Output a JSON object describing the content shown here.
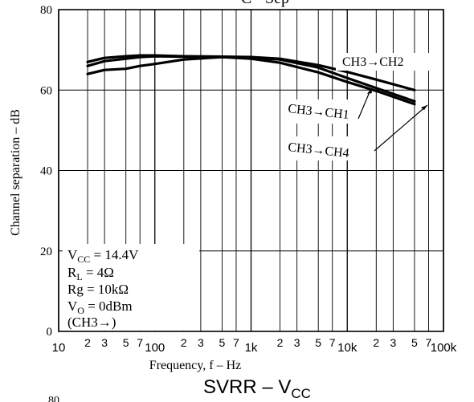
{
  "chart_data": {
    "type": "line",
    "title_fragment": "C - Sep",
    "xlabel": "Frequency, f  –  Hz",
    "ylabel": "Channel separation  –  dB",
    "xscale": "log",
    "xlim": [
      10,
      100000
    ],
    "ylim": [
      0,
      80
    ],
    "grid": true,
    "x_major_ticks": [
      {
        "value": 10,
        "label": "10"
      },
      {
        "value": 100,
        "label": "100"
      },
      {
        "value": 1000,
        "label": "1k"
      },
      {
        "value": 10000,
        "label": "10k"
      },
      {
        "value": 100000,
        "label": "100k"
      }
    ],
    "x_minor_ticks": [
      {
        "value": 20,
        "label": "2"
      },
      {
        "value": 30,
        "label": "3"
      },
      {
        "value": 50,
        "label": "5"
      },
      {
        "value": 70,
        "label": "7"
      },
      {
        "value": 200,
        "label": "2"
      },
      {
        "value": 300,
        "label": "3"
      },
      {
        "value": 500,
        "label": "5"
      },
      {
        "value": 700,
        "label": "7"
      },
      {
        "value": 2000,
        "label": "2"
      },
      {
        "value": 3000,
        "label": "3"
      },
      {
        "value": 5000,
        "label": "5"
      },
      {
        "value": 7000,
        "label": "7"
      },
      {
        "value": 20000,
        "label": "2"
      },
      {
        "value": 30000,
        "label": "3"
      },
      {
        "value": 50000,
        "label": "5"
      },
      {
        "value": 70000,
        "label": "7"
      }
    ],
    "y_ticks": [
      {
        "value": 0,
        "label": "0"
      },
      {
        "value": 20,
        "label": "20"
      },
      {
        "value": 40,
        "label": "40"
      },
      {
        "value": 60,
        "label": "60"
      },
      {
        "value": 80,
        "label": "80"
      }
    ],
    "series": [
      {
        "name": "CH3→CH2",
        "x": [
          20,
          30,
          50,
          70,
          100,
          200,
          500,
          1000,
          2000,
          5000,
          10000,
          20000,
          50000
        ],
        "y": [
          67,
          68,
          68.4,
          68.6,
          68.6,
          68.4,
          68.3,
          68.2,
          67.8,
          66.2,
          64.5,
          62.6,
          60
        ]
      },
      {
        "name": "CH3→CH1",
        "x": [
          20,
          30,
          50,
          70,
          100,
          200,
          500,
          1000,
          2000,
          5000,
          10000,
          20000,
          50000
        ],
        "y": [
          66,
          67.2,
          67.8,
          68.2,
          68.4,
          68.3,
          68.2,
          68.1,
          67.6,
          65.6,
          63,
          60.5,
          57.2
        ]
      },
      {
        "name": "CH3→CH4",
        "x": [
          20,
          30,
          50,
          70,
          100,
          200,
          500,
          1000,
          2000,
          5000,
          10000,
          20000,
          50000
        ],
        "y": [
          64,
          65,
          65.3,
          66,
          66.5,
          67.6,
          68.2,
          67.8,
          66.8,
          64.4,
          62,
          59.8,
          56.5
        ]
      }
    ],
    "annotations": {
      "ch2": "CH3→CH2",
      "ch1": "CH3→CH1",
      "ch4": "CH3→CH4"
    },
    "conditions": {
      "vcc": "V_CC = 14.4V",
      "rl": "R_L = 4Ω",
      "rg": "Rg = 10kΩ",
      "vo": "V_O = 0dBm",
      "ch": "(CH3→)"
    },
    "next_chart": {
      "title": "SVRR  –  V_CC",
      "ytick_fragment": "80"
    }
  }
}
